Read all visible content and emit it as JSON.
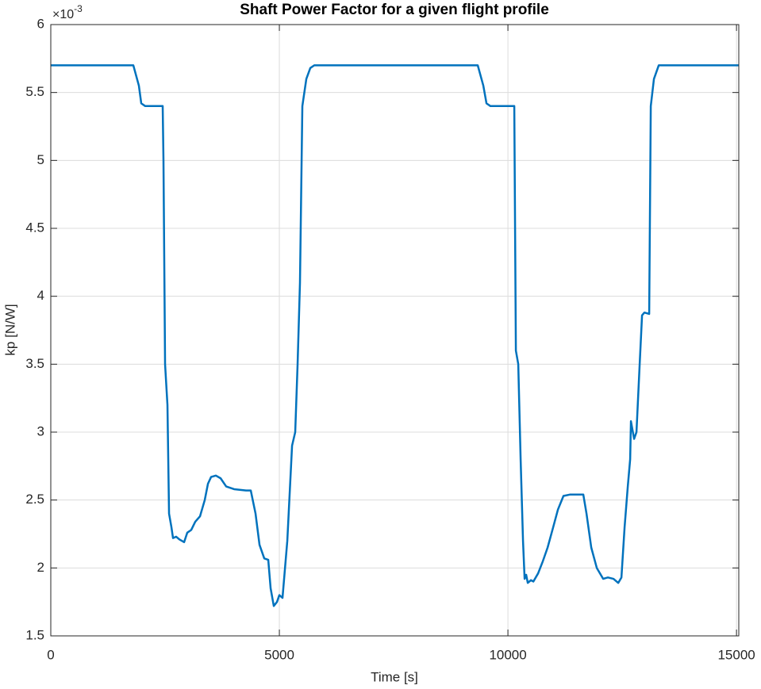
{
  "chart_data": {
    "type": "line",
    "title": "Shaft Power Factor for a given flight profile",
    "x_label": "Time [s]",
    "y_label": "kp [N/W]",
    "y_exponent": {
      "base": "×10",
      "power": "-3"
    },
    "xlim": [
      0,
      15050
    ],
    "xticks": [
      0,
      5000,
      10000,
      15000
    ],
    "ylim": [
      1.5,
      6
    ],
    "yticks": [
      1.5,
      2,
      2.5,
      3,
      3.5,
      4,
      4.5,
      5,
      5.5,
      6
    ],
    "grid": true,
    "series": [
      {
        "color": "#0072bd",
        "x": [
          0,
          1806,
          1927,
          1979,
          2066,
          2448,
          2465,
          2500,
          2552,
          2587,
          2639,
          2674,
          2743,
          2813,
          2917,
          2986,
          3073,
          3160,
          3264,
          3368,
          3438,
          3507,
          3611,
          3715,
          3837,
          4010,
          4271,
          4375,
          4479,
          4566,
          4670,
          4757,
          4809,
          4878,
          4948,
          5000,
          5069,
          5174,
          5278,
          5347,
          5399,
          5451,
          5503,
          5590,
          5677,
          5764,
          9340,
          9462,
          9531,
          9618,
          10139,
          10174,
          10226,
          10278,
          10330,
          10365,
          10399,
          10434,
          10503,
          10556,
          10660,
          10764,
          10868,
          10990,
          11094,
          11215,
          11354,
          11649,
          11719,
          11823,
          11944,
          12083,
          12187,
          12309,
          12413,
          12483,
          12552,
          12622,
          12674,
          12691,
          12760,
          12812,
          12882,
          12934,
          12986,
          13090,
          13125,
          13194,
          13299,
          15050
        ],
        "values": [
          5.7,
          5.7,
          5.55,
          5.42,
          5.4,
          5.4,
          5.0,
          3.5,
          3.2,
          2.4,
          2.3,
          2.22,
          2.23,
          2.21,
          2.19,
          2.26,
          2.28,
          2.34,
          2.38,
          2.5,
          2.62,
          2.67,
          2.68,
          2.66,
          2.6,
          2.58,
          2.57,
          2.57,
          2.4,
          2.17,
          2.07,
          2.06,
          1.85,
          1.72,
          1.75,
          1.8,
          1.78,
          2.2,
          2.9,
          3.0,
          3.5,
          4.1,
          5.4,
          5.6,
          5.68,
          5.7,
          5.7,
          5.55,
          5.42,
          5.4,
          5.4,
          3.6,
          3.5,
          2.8,
          2.2,
          1.92,
          1.95,
          1.89,
          1.91,
          1.9,
          1.96,
          2.05,
          2.15,
          2.3,
          2.43,
          2.53,
          2.54,
          2.54,
          2.4,
          2.15,
          2.0,
          1.92,
          1.93,
          1.92,
          1.89,
          1.93,
          2.3,
          2.6,
          2.8,
          3.08,
          2.95,
          3.0,
          3.5,
          3.86,
          3.88,
          3.87,
          5.4,
          5.6,
          5.7,
          5.7
        ]
      }
    ]
  }
}
